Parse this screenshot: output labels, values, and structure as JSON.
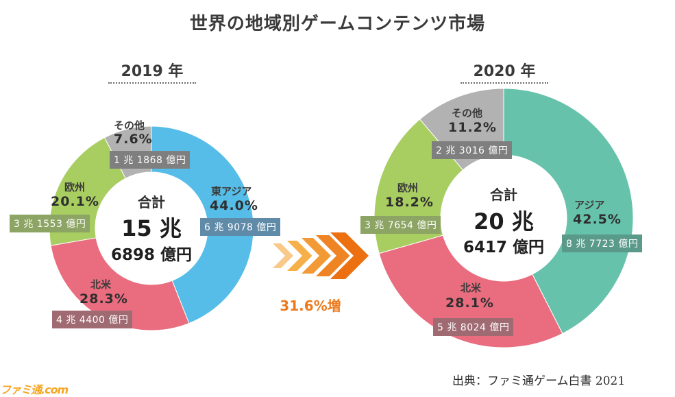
{
  "title": "世界の地域別ゲームコンテンツ市場",
  "growth_label": "31.6%増",
  "source_label": "出典：ファミ通ゲーム白書 2021",
  "watermark_text": "ファミ通.com",
  "colors": {
    "east_asia": "#55bde8",
    "north_america": "#e96d7f",
    "europe": "#a8cd61",
    "other": "#b2b2b2",
    "arrow": "#ec7a1c",
    "arrow_light": "#f6b04a"
  },
  "chart_data": [
    {
      "type": "pie",
      "year_label": "2019 年",
      "center": {
        "title": "合計",
        "big": "15 兆",
        "mid": "6898 億円"
      },
      "slices": [
        {
          "name": "東アジア",
          "percent": 44.0,
          "percent_label": "44.0%",
          "amount": "6 兆 9078 億円",
          "color_key": "east_asia"
        },
        {
          "name": "北米",
          "percent": 28.3,
          "percent_label": "28.3%",
          "amount": "4 兆 4400 億円",
          "color_key": "north_america"
        },
        {
          "name": "欧州",
          "percent": 20.1,
          "percent_label": "20.1%",
          "amount": "3 兆 1553 億円",
          "color_key": "europe"
        },
        {
          "name": "その他",
          "percent": 7.6,
          "percent_label": "7.6%",
          "amount": "1 兆 1868 億円",
          "color_key": "other"
        }
      ]
    },
    {
      "type": "pie",
      "year_label": "2020 年",
      "center": {
        "title": "合計",
        "big": "20 兆",
        "mid": "6417 億円"
      },
      "slices": [
        {
          "name": "アジア",
          "percent": 42.5,
          "percent_label": "42.5%",
          "amount": "8 兆 7723 億円",
          "color_key": "asia"
        },
        {
          "name": "北米",
          "percent": 28.1,
          "percent_label": "28.1%",
          "amount": "5 兆 8024 億円",
          "color_key": "north_america"
        },
        {
          "name": "欧州",
          "percent": 18.2,
          "percent_label": "18.2%",
          "amount": "3 兆 7654 億円",
          "color_key": "europe"
        },
        {
          "name": "その他",
          "percent": 11.2,
          "percent_label": "11.2%",
          "amount": "2 兆 3016 億円",
          "color_key": "other"
        }
      ]
    }
  ]
}
